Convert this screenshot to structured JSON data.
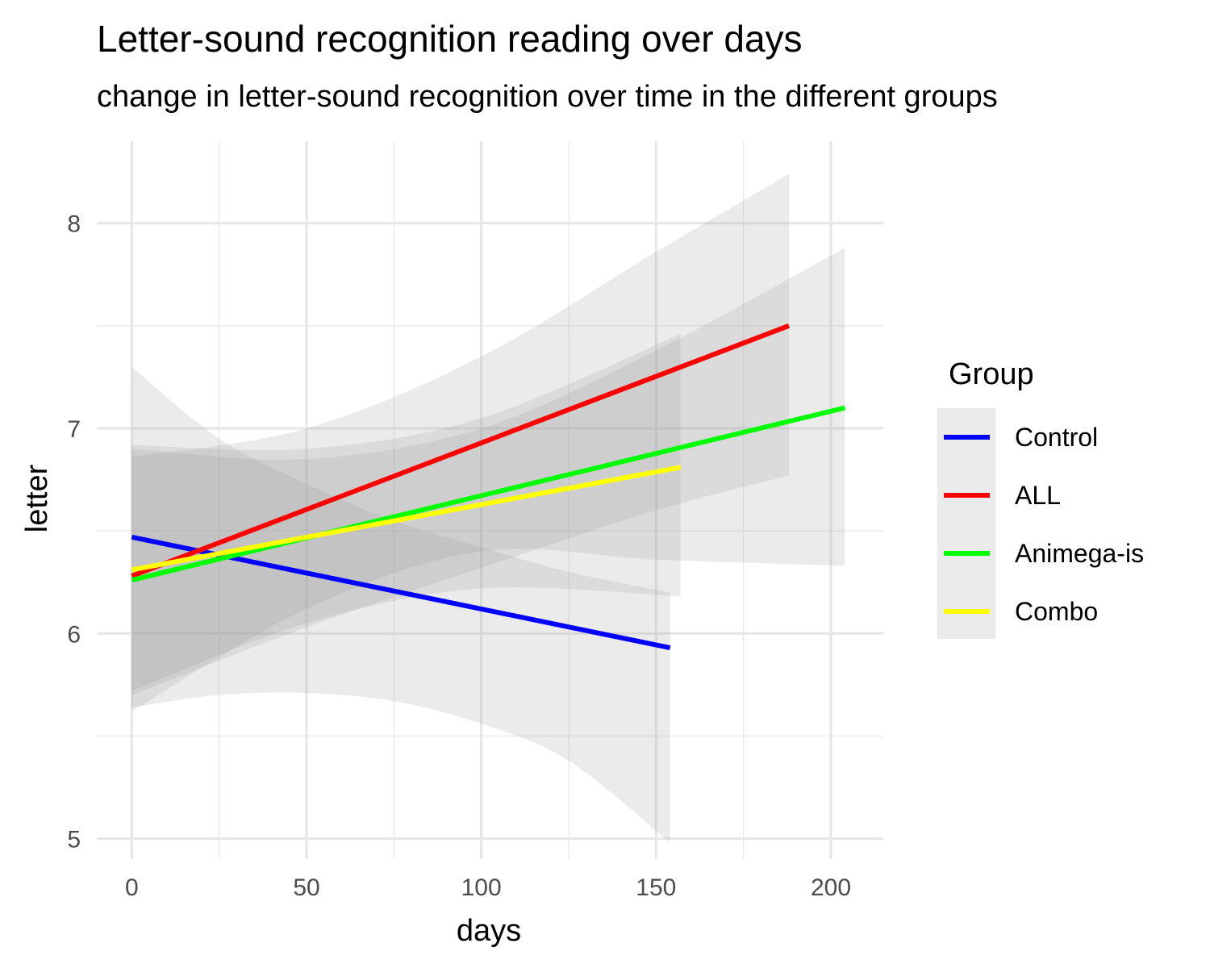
{
  "chart_data": {
    "type": "line",
    "title": "Letter-sound recognition reading over days",
    "subtitle": "change in letter-sound recognition over time in the different groups",
    "xlabel": "days",
    "ylabel": "letter",
    "xlim": [
      -10,
      215
    ],
    "ylim": [
      4.9,
      8.4
    ],
    "x_ticks": [
      0,
      50,
      100,
      150,
      200
    ],
    "x_tick_labels": [
      "0",
      "50",
      "100",
      "150",
      "200"
    ],
    "y_ticks": [
      5,
      6,
      7,
      8
    ],
    "y_tick_labels": [
      "5",
      "6",
      "7",
      "8"
    ],
    "grid": true,
    "legend": {
      "title": "Group",
      "position": "right"
    },
    "series": [
      {
        "name": "Control",
        "color": "#0000FF",
        "x": [
          0,
          154
        ],
        "y": [
          6.47,
          5.93
        ],
        "band": {
          "x": [
            0,
            25,
            50,
            75,
            100,
            125,
            154
          ],
          "lower": [
            5.64,
            5.7,
            5.71,
            5.67,
            5.56,
            5.38,
            4.98
          ],
          "upper": [
            7.3,
            6.95,
            6.73,
            6.55,
            6.42,
            6.3,
            6.2
          ]
        }
      },
      {
        "name": "ALL",
        "color": "#FF0000",
        "x": [
          0,
          188
        ],
        "y": [
          6.28,
          7.5
        ],
        "band": {
          "x": [
            0,
            50,
            100,
            150,
            188
          ],
          "lower": [
            5.7,
            6.03,
            6.32,
            6.6,
            6.77
          ],
          "upper": [
            6.86,
            7.0,
            7.35,
            7.86,
            8.24
          ]
        }
      },
      {
        "name": "Animega-is",
        "color": "#00FF00",
        "x": [
          0,
          204
        ],
        "y": [
          6.26,
          7.1
        ],
        "band": {
          "x": [
            0,
            50,
            100,
            150,
            204
          ],
          "lower": [
            5.62,
            6.12,
            6.4,
            6.36,
            6.33
          ],
          "upper": [
            6.9,
            6.85,
            7.0,
            7.38,
            7.88
          ]
        }
      },
      {
        "name": "Combo",
        "color": "#FFFF00",
        "x": [
          0,
          157
        ],
        "y": [
          6.31,
          6.81
        ],
        "band": {
          "x": [
            0,
            50,
            100,
            157
          ],
          "lower": [
            5.72,
            6.05,
            6.22,
            6.18
          ],
          "upper": [
            6.92,
            6.9,
            7.05,
            7.46
          ]
        }
      }
    ]
  }
}
